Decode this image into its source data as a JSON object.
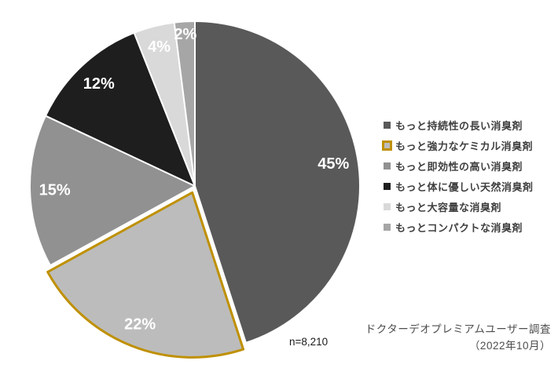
{
  "chart_data": {
    "type": "pie",
    "title": "",
    "legend_position": "right",
    "start_angle_deg": 0,
    "direction": "clockwise",
    "sample_size": "n=8,210",
    "source_line1": "ドクターデオプレミアムユーザー調査",
    "source_line2": "（2022年10月）",
    "highlight_color": "#bf9000",
    "slice_border_color": "#ffffff",
    "slices": [
      {
        "label": "もっと持続性の長い消臭剤",
        "value": 45,
        "pct_label": "45%",
        "color": "#595959",
        "exploded": false
      },
      {
        "label": "もっと強力なケミカル消臭剤",
        "value": 22,
        "pct_label": "22%",
        "color": "#bcbcbc",
        "border_color": "#bf9000",
        "exploded": true
      },
      {
        "label": "もっと即効性の高い消臭剤",
        "value": 15,
        "pct_label": "15%",
        "color": "#919191",
        "exploded": false
      },
      {
        "label": "もっと体に優しい天然消臭剤",
        "value": 12,
        "pct_label": "12%",
        "color": "#1e1e1e",
        "exploded": false
      },
      {
        "label": "もっと大容量な消臭剤",
        "value": 4,
        "pct_label": "4%",
        "color": "#d9d9d9",
        "exploded": false
      },
      {
        "label": "もっとコンパクトな消臭剤",
        "value": 2,
        "pct_label": "2%",
        "color": "#a6a6a6",
        "exploded": false
      }
    ]
  }
}
